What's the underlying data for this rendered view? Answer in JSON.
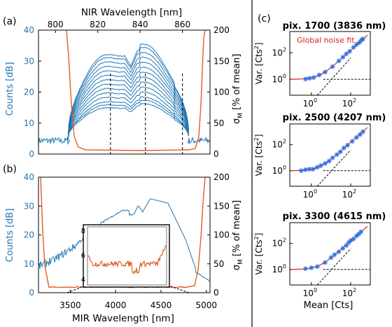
{
  "figure": {
    "panel_labels": [
      "(a)",
      "(b)",
      "(c)"
    ],
    "top_xlabel": "NIR Wavelength [nm]",
    "bottom_xlabel": "MIR Wavelength [nm]",
    "left_ylabel": "Counts [dB]",
    "right_ylabel_main": "σ",
    "right_ylabel_sub": "M",
    "right_ylabel_tail": " [% of mean]",
    "c_ylabel_main": "Var. [Cts",
    "c_ylabel_sup": "2",
    "c_ylabel_tail": "]",
    "c_xlabel": "Mean [Cts]",
    "fit_label": "Global noise fit"
  },
  "chart_data": [
    {
      "panel": "(a)",
      "type": "line",
      "x_top_ticks": [
        "800",
        "820",
        "840",
        "860"
      ],
      "x_top_values": [
        800,
        820,
        840,
        860
      ],
      "xlim_top": [
        792,
        873
      ],
      "y_left_ticks": [
        "0",
        "10",
        "20",
        "30",
        "40"
      ],
      "ylim_left": [
        0,
        40
      ],
      "y_right_ticks": [
        "0",
        "50",
        "100",
        "150",
        "200"
      ],
      "ylim_right": [
        0,
        200
      ],
      "dashed_x": [
        826,
        842.5,
        860
      ],
      "spectrum_peaks": [
        15.5,
        16.5,
        17.5,
        19,
        20.5,
        22,
        23.5,
        25,
        26.5,
        28,
        29.5,
        31,
        32.5,
        33.5
      ],
      "colors": {
        "spectrum": "#1f77b4",
        "sigma": "#e35d20",
        "axis_left": "#1f77b4",
        "axis_right": "#000000"
      }
    },
    {
      "panel": "(b)",
      "type": "line",
      "x_ticks": [
        "3500",
        "4000",
        "4500",
        "5000"
      ],
      "x_values": [
        3500,
        4000,
        4500,
        5000
      ],
      "xlim": [
        3150,
        5040
      ],
      "y_left_ticks": [
        "0",
        "10",
        "20",
        "30",
        "40"
      ],
      "ylim_left": [
        0,
        40
      ],
      "y_right_ticks": [
        "0",
        "50",
        "100",
        "150",
        "200"
      ],
      "ylim_right": [
        0,
        200
      ],
      "inset": {
        "y_ticks": [
          "4",
          "6",
          "8"
        ],
        "ylim": [
          3.5,
          8.3
        ],
        "x_range": [
          3560,
          4800
        ]
      }
    },
    {
      "panel": "(c)",
      "type": "scatter",
      "subplots": [
        {
          "title": "pix. 1700 (3836 nm)",
          "points_x": [
            0.5,
            0.8,
            1.3,
            2.5,
            5,
            12,
            25,
            40,
            60,
            90,
            140,
            200,
            280,
            350,
            420
          ],
          "fit_floor": 1.0
        },
        {
          "title": "pix. 2500 (4207 nm)",
          "points_x": [
            0.3,
            0.5,
            0.8,
            1.2,
            2,
            3,
            5,
            8,
            12,
            20,
            30,
            45,
            70,
            120,
            200,
            300,
            420
          ],
          "fit_floor": 1.0
        },
        {
          "title": "pix. 3300 (4615 nm)",
          "points_x": [
            0.5,
            1.0,
            2,
            5,
            10,
            15,
            25,
            40,
            60,
            80,
            100,
            140,
            200,
            260,
            330
          ],
          "fit_floor": 1.0
        }
      ],
      "x_ticks": [
        "10^0",
        "10^2"
      ],
      "y_ticks": [
        "10^0",
        "10^2"
      ],
      "xlim_log10": [
        -1.1,
        3.0
      ],
      "ylim_log10": [
        -1.2,
        3.6
      ],
      "colors": {
        "points": "#2e6ee0",
        "fit": "#e02020",
        "asymptote": "#000000"
      }
    }
  ]
}
